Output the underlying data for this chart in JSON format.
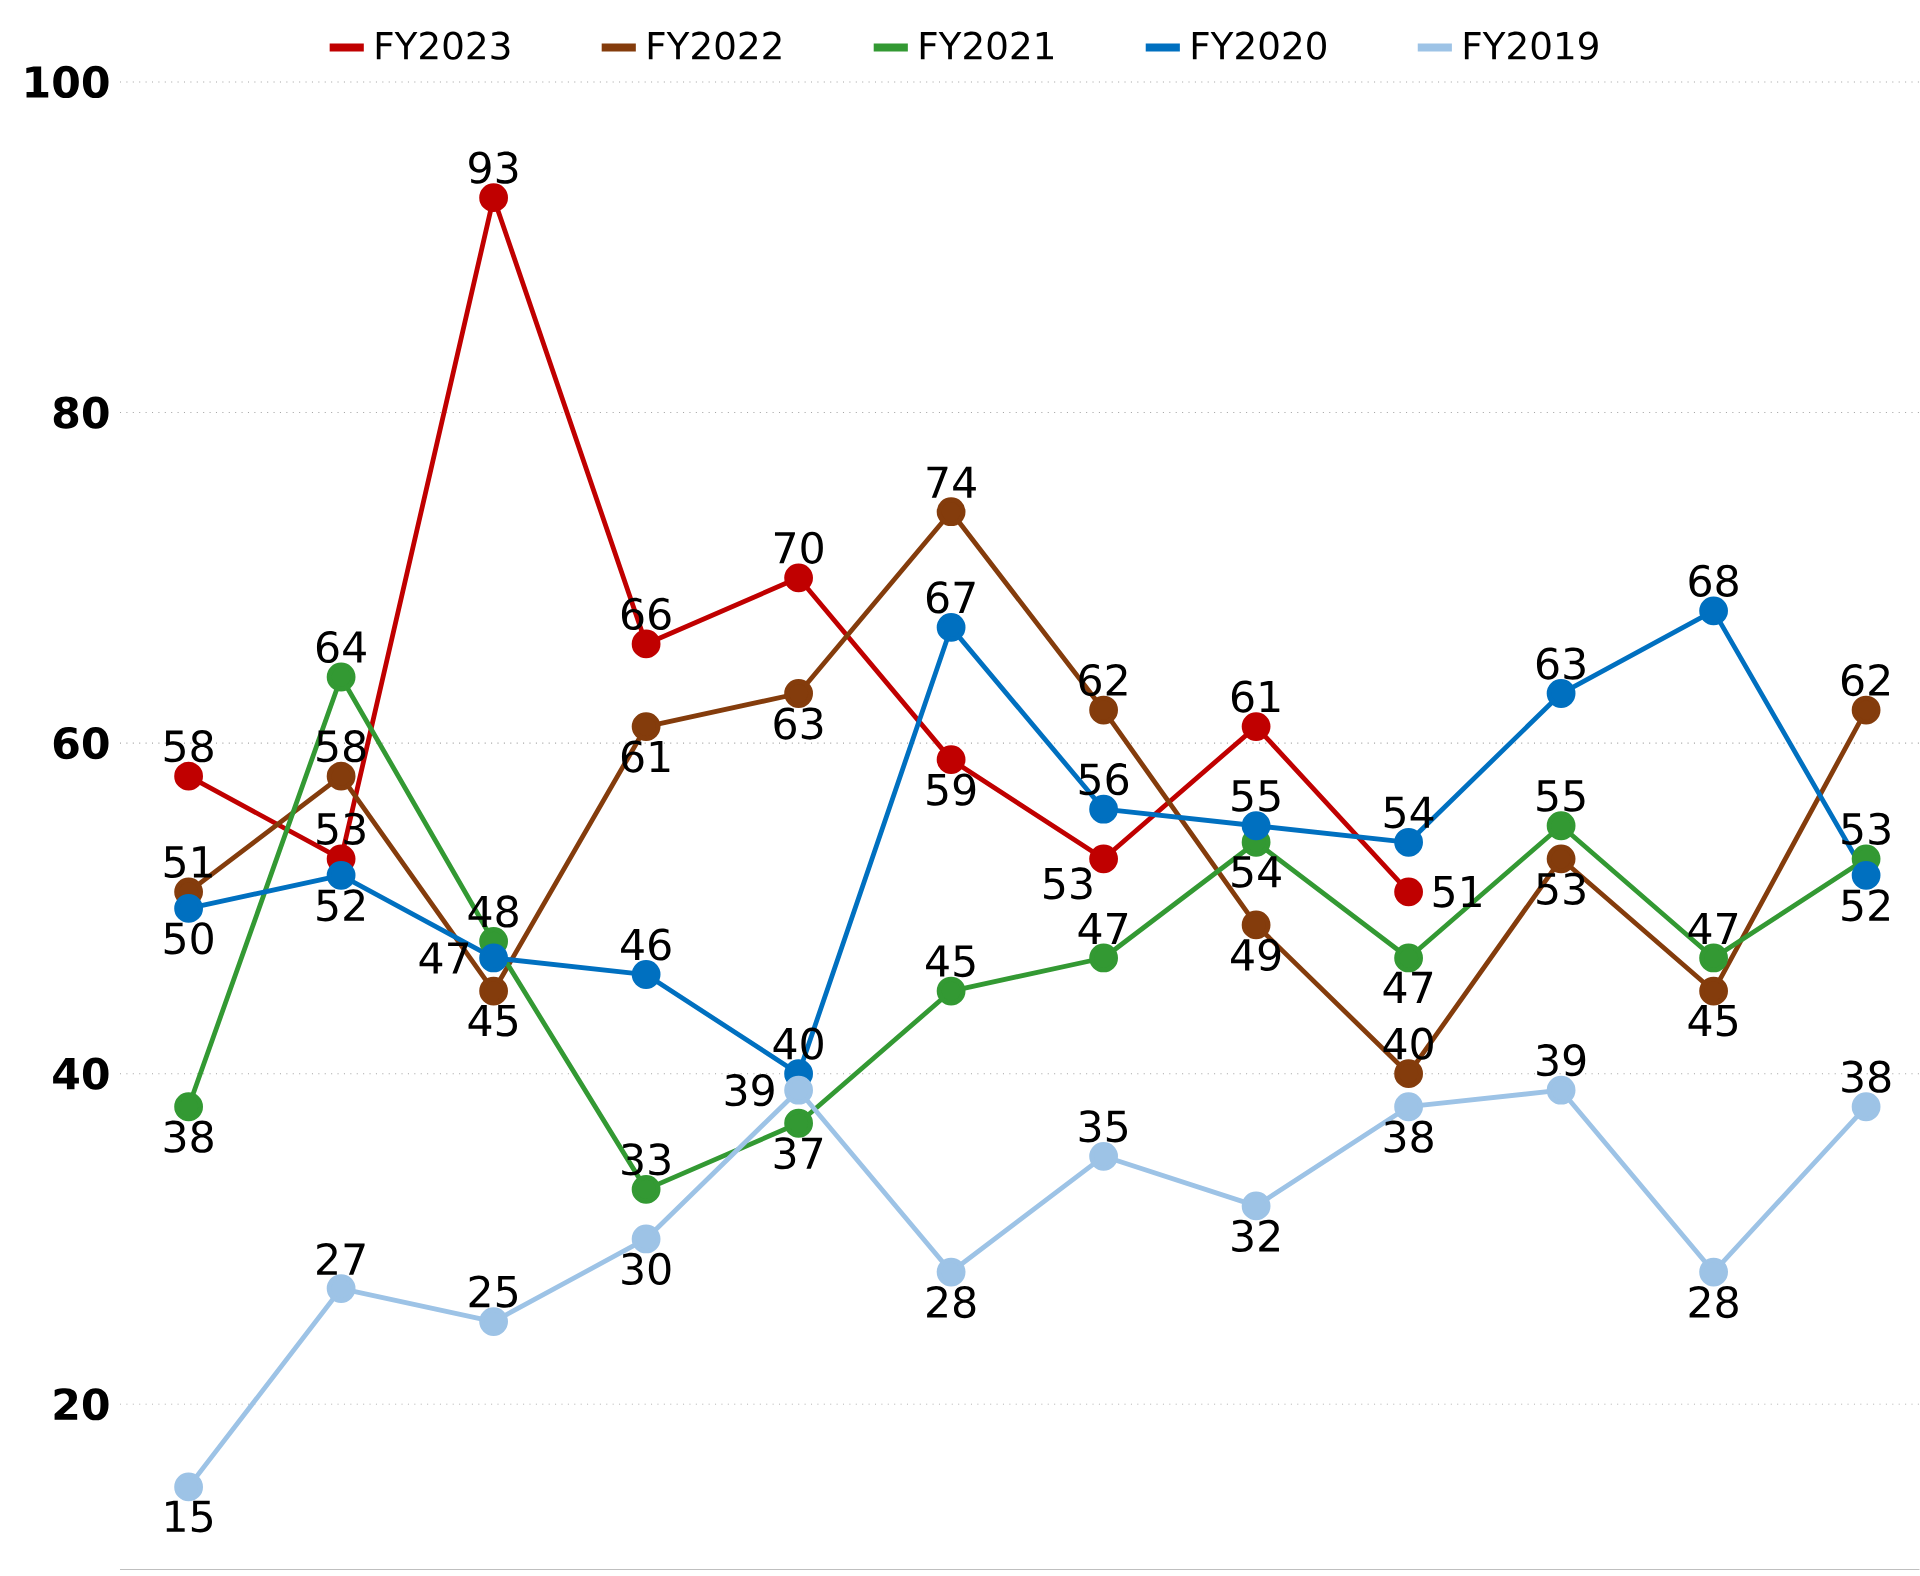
{
  "chart_data": {
    "type": "line",
    "categories": [
      null,
      null,
      null,
      null,
      null,
      null,
      null,
      null,
      null,
      null,
      null,
      null
    ],
    "series": [
      {
        "name": "FY2023",
        "color": "#c00000",
        "values": [
          58,
          53,
          93,
          66,
          70,
          59,
          53,
          61,
          51,
          null,
          null,
          null
        ]
      },
      {
        "name": "FY2022",
        "color": "#843c0c",
        "values": [
          51,
          58,
          45,
          61,
          63,
          74,
          62,
          49,
          40,
          53,
          45,
          62
        ]
      },
      {
        "name": "FY2021",
        "color": "#339933",
        "values": [
          38,
          64,
          48,
          33,
          37,
          45,
          47,
          54,
          47,
          55,
          47,
          53
        ]
      },
      {
        "name": "FY2020",
        "color": "#0070c0",
        "values": [
          50,
          52,
          47,
          46,
          40,
          67,
          56,
          55,
          54,
          63,
          68,
          52
        ]
      },
      {
        "name": "FY2019",
        "color": "#9dc3e6",
        "values": [
          15,
          27,
          25,
          30,
          39,
          28,
          35,
          32,
          38,
          39,
          28,
          38
        ]
      }
    ],
    "ylim": [
      10,
      100
    ],
    "yticks": [
      20,
      40,
      60,
      80,
      100
    ],
    "grid": "y",
    "legend": "top",
    "marker": "circle",
    "line_style": "solid",
    "data_labels": true
  }
}
